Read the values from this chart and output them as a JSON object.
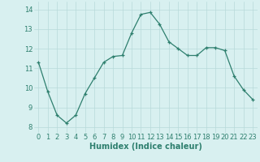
{
  "x": [
    0,
    1,
    2,
    3,
    4,
    5,
    6,
    7,
    8,
    9,
    10,
    11,
    12,
    13,
    14,
    15,
    16,
    17,
    18,
    19,
    20,
    21,
    22,
    23
  ],
  "y": [
    11.3,
    9.8,
    8.6,
    8.2,
    8.6,
    9.7,
    10.5,
    11.3,
    11.6,
    11.65,
    12.8,
    13.75,
    13.85,
    13.25,
    12.35,
    12.0,
    11.65,
    11.65,
    12.05,
    12.05,
    11.9,
    10.6,
    9.9,
    9.4
  ],
  "xlabel": "Humidex (Indice chaleur)",
  "yticks": [
    8,
    9,
    10,
    11,
    12,
    13,
    14
  ],
  "xticks": [
    0,
    1,
    2,
    3,
    4,
    5,
    6,
    7,
    8,
    9,
    10,
    11,
    12,
    13,
    14,
    15,
    16,
    17,
    18,
    19,
    20,
    21,
    22,
    23
  ],
  "ylim": [
    7.7,
    14.4
  ],
  "xlim": [
    -0.5,
    23.5
  ],
  "line_color": "#2e7f6e",
  "marker": "+",
  "bg_color": "#d8f0f0",
  "grid_color": "#b8dada",
  "tick_fontsize": 6,
  "xlabel_fontsize": 7
}
